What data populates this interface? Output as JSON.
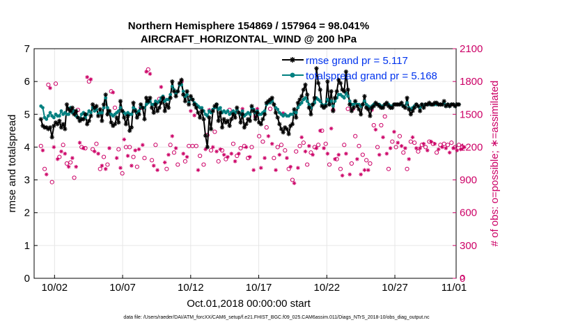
{
  "chart_data": {
    "type": "line",
    "title_line1": "Northern Hemisphere 154869 / 157964 = 98.041%",
    "title_line2": "AIRCRAFT_HORIZONTAL_WIND @ 200 hPa",
    "ylabel_left": "rmse and totalspread",
    "ylabel_right": "# of obs: o=possible; ∗=assimilated",
    "xlabel": "Oct.01,2018 00:00:00 start",
    "footnote": "data file: /Users/raeder/DAI/ATM_forcXX/CAM6_setup/f.e21.FHIST_BGC.f09_025.CAM6assim.011/Diags_NTrS_2018-10/obs_diag_output.nc",
    "x_range": [
      0.5,
      31.5
    ],
    "x_ticks": [
      {
        "value": 2,
        "label": "10/02"
      },
      {
        "value": 7,
        "label": "10/07"
      },
      {
        "value": 12,
        "label": "10/12"
      },
      {
        "value": 17,
        "label": "10/17"
      },
      {
        "value": 22,
        "label": "10/22"
      },
      {
        "value": 27,
        "label": "10/27"
      },
      {
        "value": 32,
        "label": "11/01"
      }
    ],
    "ylim_left": [
      0,
      7
    ],
    "y_ticks_left": [
      "0",
      "1",
      "2",
      "3",
      "4",
      "5",
      "6",
      "7"
    ],
    "ylim_right": [
      0,
      2100
    ],
    "y_ticks_right": [
      "0",
      "300",
      "600",
      "900",
      "1200",
      "1500",
      "1800",
      "2100"
    ],
    "grid": true,
    "legend_position": "top-right",
    "colors": {
      "rmse": "#000000",
      "spread": "#008080",
      "obs": "#cc0066",
      "legend_text": "#0033ee"
    },
    "series": [
      {
        "name": "rmse grand pr = 5.117",
        "axis": "left",
        "marker": "asterisk",
        "values": [
          4.85,
          4.65,
          4.6,
          4.6,
          4.55,
          4.6,
          4.3,
          4.65,
          4.75,
          4.7,
          4.8,
          4.6,
          4.7,
          4.55,
          5.3,
          5.15,
          5.1,
          5.2,
          5.0,
          5.1,
          4.9,
          4.8,
          4.85,
          4.85,
          5.0,
          4.7,
          4.8,
          4.95,
          5.3,
          5.2,
          5.25,
          4.95,
          5.15,
          4.8,
          5.3,
          5.6,
          5.0,
          5.1,
          4.75,
          4.65,
          4.7,
          4.9,
          4.75,
          5.4,
          5.1,
          4.9,
          4.7,
          4.95,
          4.5,
          4.6,
          5.35,
          5.1,
          4.9,
          5.0,
          5.3,
          5.2,
          4.85,
          5.5,
          5.4,
          5.5,
          5.2,
          5.05,
          5.3,
          5.1,
          5.2,
          5.35,
          5.5,
          5.1,
          5.3,
          5.2,
          5.5,
          6.0,
          5.7,
          5.55,
          5.7,
          5.95,
          6.05,
          5.6,
          5.4,
          5.7,
          5.3,
          5.55,
          5.45,
          5.3,
          5.2,
          5.05,
          4.9,
          5.1,
          4.85,
          4.35,
          4.0,
          4.9,
          4.55,
          5.1,
          5.25,
          5.3,
          4.8,
          5.05,
          4.6,
          4.85,
          4.75,
          4.8,
          4.65,
          4.85,
          5.0,
          4.9,
          5.2,
          5.05,
          4.75,
          5.0,
          4.6,
          4.7,
          4.85,
          4.8,
          5.25,
          5.1,
          4.85,
          5.05,
          4.75,
          4.7,
          4.85,
          5.0,
          5.35,
          5.4,
          5.45,
          5.5,
          5.3,
          5.05,
          4.9,
          4.7,
          4.55,
          4.45,
          4.6,
          4.55,
          4.4,
          4.65,
          4.7,
          5.15,
          4.9,
          5.35,
          5.45,
          5.55,
          5.75,
          5.9,
          5.6,
          5.2,
          5.0,
          5.3,
          5.5,
          6.4,
          5.95,
          5.75,
          5.25,
          5.2,
          5.25,
          6.0,
          5.3,
          5.7,
          5.1,
          5.5,
          5.7,
          6.05,
          5.95,
          5.75,
          5.7,
          6.3,
          5.75,
          5.3,
          5.1,
          5.2,
          5.4,
          5.25,
          5.15,
          5.0,
          5.3,
          5.55,
          5.2,
          5.15,
          4.95,
          5.2,
          5.25,
          5.35,
          5.3,
          5.25,
          5.2,
          5.2,
          5.3,
          5.35,
          5.25,
          5.2,
          5.2,
          5.3,
          5.3,
          5.3,
          5.3,
          5.35,
          5.25,
          5.2,
          5.5,
          5.15,
          5.0,
          5.1,
          5.2,
          5.3,
          5.25,
          5.1,
          5.3,
          5.2,
          5.3,
          5.3,
          5.35,
          5.3,
          5.3,
          5.35,
          5.35,
          5.3,
          5.3,
          5.3,
          5.4,
          5.25,
          5.3,
          5.25,
          5.3,
          5.3,
          5.25,
          5.3,
          5.3
        ]
      },
      {
        "name": "totalspread grand pr = 5.168",
        "axis": "left",
        "marker": "dot",
        "values": [
          5.25,
          5.2,
          4.9,
          4.85,
          4.95,
          5.05,
          4.95,
          4.9,
          5.0,
          4.95,
          4.95,
          5.1,
          5.0,
          5.05,
          5.0,
          5.0,
          5.2,
          5.05,
          5.1,
          4.95,
          4.9,
          4.85,
          5.0,
          5.05,
          4.9,
          5.0,
          5.1,
          5.05,
          5.2,
          5.1,
          5.15,
          5.0,
          5.05,
          5.05,
          5.2,
          5.5,
          5.2,
          5.05,
          5.0,
          4.95,
          5.0,
          5.05,
          5.1,
          5.2,
          5.1,
          5.05,
          5.0,
          5.05,
          5.0,
          5.0,
          5.2,
          5.15,
          5.05,
          5.1,
          5.25,
          5.2,
          5.2,
          5.3,
          5.35,
          5.4,
          5.3,
          5.3,
          5.4,
          5.35,
          5.4,
          5.5,
          5.55,
          5.4,
          5.45,
          5.45,
          5.6,
          5.85,
          5.75,
          5.65,
          5.7,
          5.9,
          5.9,
          5.7,
          5.55,
          5.6,
          5.35,
          5.5,
          5.45,
          5.35,
          5.3,
          5.25,
          5.2,
          5.2,
          5.1,
          5.0,
          4.95,
          5.1,
          5.05,
          5.15,
          5.2,
          5.3,
          5.15,
          5.2,
          5.05,
          5.1,
          5.05,
          5.1,
          5.0,
          5.05,
          5.1,
          5.05,
          5.15,
          5.05,
          5.0,
          5.1,
          4.95,
          5.0,
          5.05,
          5.0,
          5.2,
          5.15,
          5.05,
          5.1,
          5.0,
          5.0,
          5.05,
          5.1,
          5.3,
          5.35,
          5.35,
          5.4,
          5.3,
          5.2,
          5.15,
          5.05,
          5.0,
          4.95,
          5.0,
          4.95,
          4.95,
          5.0,
          5.0,
          5.1,
          5.05,
          5.2,
          5.3,
          5.35,
          5.45,
          5.5,
          5.4,
          5.3,
          5.2,
          5.3,
          5.35,
          5.5,
          5.45,
          5.4,
          5.3,
          5.25,
          5.3,
          5.45,
          5.3,
          5.4,
          5.25,
          5.4,
          5.5,
          5.6,
          5.6,
          5.55,
          5.5,
          5.65,
          5.55,
          5.4,
          5.3,
          5.3,
          5.35,
          5.3,
          5.3,
          5.25,
          5.3,
          5.4,
          5.3,
          5.25,
          5.2,
          5.25,
          5.3,
          5.3,
          5.3,
          5.3,
          5.25,
          5.25,
          5.3,
          5.3,
          5.3,
          5.25,
          5.25,
          5.3,
          5.3,
          5.3,
          5.3,
          5.3,
          5.25,
          5.25,
          5.35,
          5.2,
          5.15,
          5.2,
          5.25,
          5.3,
          5.25,
          5.2,
          5.3,
          5.25,
          5.3,
          5.3,
          5.3,
          5.3,
          5.3,
          5.3,
          5.3,
          5.3,
          5.3,
          5.3,
          5.35,
          5.25,
          5.3,
          5.25,
          5.3,
          5.3,
          5.25,
          5.3,
          5.3
        ]
      },
      {
        "name": "obs possible",
        "axis": "right",
        "marker": "o",
        "values": [
          1210,
          1180,
          1000,
          960,
          1770,
          1750,
          880,
          1210,
          1780,
          1100,
          1110,
          1170,
          1220,
          1150,
          1050,
          1030,
          1060,
          1110,
          920,
          1030,
          1540,
          1250,
          1200,
          1200,
          1190,
          1850,
          1800,
          1830,
          1180,
          1170,
          1230,
          1150,
          1000,
          1040,
          1110,
          1010,
          1040,
          1200,
          1710,
          1710,
          1560,
          1110,
          1180,
          1020,
          960,
          1280,
          1200,
          1130,
          1200,
          1040,
          1110,
          1180,
          1020,
          1190,
          1560,
          1230,
          1100,
          1900,
          1910,
          1880,
          1080,
          1040,
          1220,
          1000,
          1640,
          1760,
          1650,
          1070,
          1000,
          1140,
          1220,
          1310,
          1150,
          1200,
          1040,
          1780,
          1800,
          1150,
          1070,
          1120,
          1210,
          1540,
          1210,
          1500,
          1210,
          1000,
          1120,
          1540,
          1040,
          1190,
          1310,
          1550,
          1170,
          1210,
          1340,
          1170,
          1070,
          1190,
          1170,
          1140,
          1090,
          1120,
          1540,
          1150,
          1230,
          1080,
          1120,
          1150,
          1190,
          1560,
          1210,
          1210,
          1100,
          1120,
          1200,
          1000,
          1480,
          1560,
          1300,
          1020,
          1250,
          1110,
          1380,
          1310,
          1550,
          1240,
          1100,
          1000,
          1200,
          1140,
          1220,
          1520,
          1170,
          1110,
          1000,
          1030,
          900,
          880,
          1160,
          1020,
          1210,
          1300,
          1240,
          1170,
          1040,
          1220,
          1150,
          1140,
          1200,
          1200,
          1220,
          1360,
          1350,
          1200,
          1230,
          1150,
          1040,
          1380,
          1540,
          1100,
          1090,
          1140,
          1000,
          950,
          1220,
          1150,
          1550,
          960,
          1050,
          1560,
          1300,
          1100,
          1210,
          960,
          1130,
          1000,
          1080,
          1000,
          1050,
          1550,
          1400,
          1370,
          1200,
          1140,
          1400,
          1300,
          1480,
          1150,
          1000,
          1200,
          1250,
          1350,
          1200,
          1250,
          1300,
          1220,
          1150,
          1200,
          1000,
          1100,
          1250,
          1300,
          1240,
          1200,
          1160,
          1200,
          1220,
          1240,
          1200,
          1180,
          1250,
          1260,
          1230,
          1240,
          1150,
          1190,
          1220,
          1210,
          1230,
          1200,
          1220,
          1160,
          1240,
          1200,
          1200,
          1180,
          1220,
          1190,
          1200,
          1210
        ]
      },
      {
        "name": "obs assimilated",
        "axis": "right",
        "marker": "asterisk",
        "values": [
          1200,
          1170,
          990,
          950,
          1750,
          1740,
          870,
          1200,
          1770,
          1090,
          1100,
          1160,
          1210,
          1140,
          1040,
          1020,
          1050,
          1100,
          910,
          1020,
          1530,
          1240,
          1190,
          1190,
          1180,
          1840,
          1790,
          1820,
          1170,
          1160,
          1220,
          1140,
          990,
          1030,
          1100,
          1000,
          1030,
          1190,
          1700,
          1700,
          1550,
          1100,
          1170,
          1010,
          950,
          1270,
          1190,
          1120,
          1190,
          1030,
          1100,
          1170,
          1010,
          1180,
          1550,
          1220,
          1090,
          1890,
          1900,
          1870,
          1070,
          1030,
          1210,
          990,
          1630,
          1750,
          1640,
          1060,
          990,
          1130,
          1210,
          1300,
          1140,
          1190,
          1030,
          1770,
          1790,
          1140,
          1060,
          1110,
          1200,
          1530,
          1200,
          1490,
          1200,
          990,
          1110,
          1530,
          1030,
          1180,
          1300,
          1540,
          1160,
          1200,
          1330,
          1160,
          1060,
          1180,
          1160,
          1130,
          1080,
          1110,
          1530,
          1140,
          1220,
          1070,
          1110,
          1140,
          1180,
          1550,
          1200,
          1200,
          1090,
          1110,
          1190,
          990,
          1470,
          1550,
          1290,
          1010,
          1240,
          1100,
          1370,
          1300,
          1540,
          1230,
          1090,
          990,
          1190,
          1130,
          1210,
          1510,
          1160,
          1100,
          990,
          1020,
          890,
          870,
          1150,
          1010,
          1200,
          1290,
          1230,
          1160,
          1030,
          1210,
          1140,
          1130,
          1190,
          1190,
          1210,
          1350,
          1340,
          1190,
          1220,
          1140,
          1030,
          1370,
          1530,
          1090,
          1080,
          1130,
          990,
          940,
          1210,
          1140,
          1540,
          950,
          1040,
          1550,
          1290,
          1090,
          1200,
          950,
          1120,
          990,
          1070,
          990,
          1040,
          1540,
          1390,
          1360,
          1190,
          1130,
          1390,
          1290,
          1470,
          1140,
          990,
          1190,
          1240,
          1340,
          1190,
          1240,
          1290,
          1210,
          1140,
          1190,
          990,
          1090,
          1240,
          1290,
          1230,
          1190,
          1150,
          1190,
          1210,
          1230,
          1190,
          1170,
          1240,
          1250,
          1220,
          1230,
          1140,
          1180,
          1210,
          1200,
          1220,
          1190,
          1210,
          1150,
          1230,
          1190,
          1190,
          1170,
          1210,
          1180,
          1190,
          1200
        ]
      }
    ],
    "obs_last_point": {
      "x": 32,
      "y": 0
    }
  }
}
